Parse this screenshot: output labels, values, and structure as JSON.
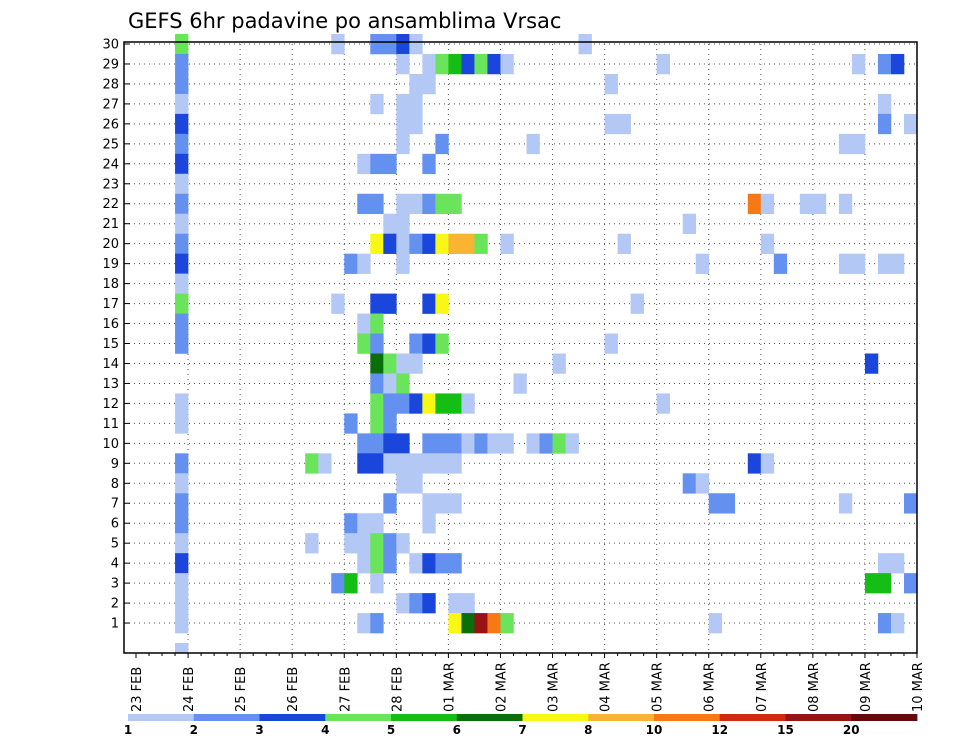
{
  "chart_data": {
    "type": "heatmap",
    "title": "GEFS 6hr padavine po ansamblima Vrsac",
    "x_tick_labels": [
      "23 FEB",
      "24 FEB",
      "25 FEB",
      "26 FEB",
      "27 FEB",
      "28 FEB",
      "01 MAR",
      "02 MAR",
      "03 MAR",
      "04 MAR",
      "05 MAR",
      "06 MAR",
      "07 MAR",
      "08 MAR",
      "09 MAR",
      "10 MAR"
    ],
    "x_range_days": [
      0,
      15
    ],
    "y_tick_labels": [
      "1",
      "2",
      "3",
      "4",
      "5",
      "6",
      "7",
      "8",
      "9",
      "10",
      "11",
      "12",
      "13",
      "14",
      "15",
      "16",
      "17",
      "18",
      "19",
      "20",
      "21",
      "22",
      "23",
      "24",
      "25",
      "26",
      "27",
      "28",
      "29",
      "30"
    ],
    "y_range": [
      0,
      30
    ],
    "grid": true,
    "colorbar": {
      "tick_labels": [
        "1",
        "2",
        "3",
        "4",
        "5",
        "6",
        "7",
        "8",
        "10",
        "12",
        "15",
        "20"
      ],
      "colors": [
        "#b4c8f5",
        "#6490f0",
        "#1a46dc",
        "#6ae45a",
        "#14be14",
        "#0a6e0a",
        "#f8f814",
        "#f8b432",
        "#f87814",
        "#d22814",
        "#961414",
        "#640a0a"
      ]
    },
    "cells_note": "each cell: [x_day_offset_from_23FEB, member_row, color_class_index]",
    "cells": [
      [
        0.75,
        30,
        3
      ],
      [
        0.75,
        29,
        1
      ],
      [
        0.75,
        28,
        1
      ],
      [
        0.75,
        27,
        0
      ],
      [
        0.75,
        26,
        2
      ],
      [
        0.75,
        25,
        1
      ],
      [
        0.75,
        24,
        2
      ],
      [
        0.75,
        23,
        0
      ],
      [
        0.75,
        22,
        1
      ],
      [
        0.75,
        21,
        0
      ],
      [
        0.75,
        20,
        1
      ],
      [
        0.75,
        19,
        2
      ],
      [
        0.75,
        18,
        0
      ],
      [
        0.75,
        17,
        3
      ],
      [
        0.75,
        16,
        1
      ],
      [
        0.75,
        15,
        1
      ],
      [
        0.75,
        12,
        0
      ],
      [
        0.75,
        11,
        0
      ],
      [
        0.75,
        9,
        1
      ],
      [
        0.75,
        8,
        0
      ],
      [
        0.75,
        7,
        1
      ],
      [
        0.75,
        6,
        1
      ],
      [
        0.75,
        5,
        0
      ],
      [
        0.75,
        4,
        2
      ],
      [
        0.75,
        3,
        0
      ],
      [
        0.75,
        2,
        0
      ],
      [
        0.75,
        1,
        0
      ],
      [
        0.75,
        0,
        0
      ],
      [
        3.75,
        30,
        0
      ],
      [
        4.5,
        30,
        1
      ],
      [
        4.75,
        30,
        1
      ],
      [
        5.0,
        30,
        2
      ],
      [
        5.25,
        30,
        0
      ],
      [
        8.5,
        30,
        0
      ],
      [
        5.0,
        29,
        0
      ],
      [
        5.5,
        29,
        0
      ],
      [
        5.75,
        29,
        3
      ],
      [
        6.0,
        29,
        4
      ],
      [
        6.25,
        29,
        2
      ],
      [
        6.5,
        29,
        3
      ],
      [
        6.75,
        29,
        2
      ],
      [
        7.0,
        29,
        0
      ],
      [
        10.0,
        29,
        0
      ],
      [
        13.75,
        29,
        0
      ],
      [
        14.25,
        29,
        1
      ],
      [
        14.5,
        29,
        2
      ],
      [
        5.25,
        28,
        0
      ],
      [
        5.5,
        28,
        0
      ],
      [
        9.0,
        28,
        0
      ],
      [
        4.5,
        27,
        0
      ],
      [
        5.0,
        27,
        0
      ],
      [
        5.25,
        27,
        0
      ],
      [
        14.25,
        27,
        0
      ],
      [
        5.0,
        26,
        0
      ],
      [
        5.25,
        26,
        0
      ],
      [
        9.0,
        26,
        0
      ],
      [
        9.25,
        26,
        0
      ],
      [
        14.25,
        26,
        1
      ],
      [
        14.75,
        26,
        0
      ],
      [
        5.0,
        25,
        0
      ],
      [
        5.75,
        25,
        1
      ],
      [
        7.5,
        25,
        0
      ],
      [
        13.5,
        25,
        0
      ],
      [
        13.75,
        25,
        0
      ],
      [
        4.25,
        24,
        0
      ],
      [
        4.5,
        24,
        1
      ],
      [
        4.75,
        24,
        1
      ],
      [
        5.5,
        24,
        1
      ],
      [
        4.25,
        22,
        1
      ],
      [
        4.5,
        22,
        1
      ],
      [
        5.0,
        22,
        0
      ],
      [
        5.25,
        22,
        0
      ],
      [
        5.5,
        22,
        1
      ],
      [
        5.75,
        22,
        3
      ],
      [
        6.0,
        22,
        3
      ],
      [
        11.75,
        22,
        8
      ],
      [
        12.0,
        22,
        0
      ],
      [
        12.75,
        22,
        0
      ],
      [
        13.0,
        22,
        0
      ],
      [
        13.5,
        22,
        0
      ],
      [
        4.75,
        21,
        0
      ],
      [
        5.0,
        21,
        0
      ],
      [
        10.5,
        21,
        0
      ],
      [
        4.5,
        20,
        6
      ],
      [
        4.75,
        20,
        2
      ],
      [
        5.0,
        20,
        0
      ],
      [
        5.25,
        20,
        1
      ],
      [
        5.5,
        20,
        2
      ],
      [
        5.75,
        20,
        6
      ],
      [
        6.0,
        20,
        7
      ],
      [
        6.25,
        20,
        7
      ],
      [
        6.5,
        20,
        3
      ],
      [
        7.0,
        20,
        0
      ],
      [
        9.25,
        20,
        0
      ],
      [
        12.0,
        20,
        0
      ],
      [
        4.0,
        19,
        1
      ],
      [
        4.25,
        19,
        0
      ],
      [
        5.0,
        19,
        0
      ],
      [
        10.75,
        19,
        0
      ],
      [
        12.25,
        19,
        1
      ],
      [
        13.5,
        19,
        0
      ],
      [
        13.75,
        19,
        0
      ],
      [
        14.25,
        19,
        0
      ],
      [
        14.5,
        19,
        0
      ],
      [
        3.75,
        17,
        0
      ],
      [
        4.5,
        17,
        2
      ],
      [
        4.75,
        17,
        2
      ],
      [
        5.5,
        17,
        2
      ],
      [
        5.75,
        17,
        6
      ],
      [
        9.5,
        17,
        0
      ],
      [
        4.25,
        16,
        0
      ],
      [
        4.5,
        16,
        3
      ],
      [
        9.0,
        15,
        0
      ],
      [
        4.25,
        15,
        3
      ],
      [
        4.5,
        15,
        1
      ],
      [
        5.25,
        15,
        1
      ],
      [
        5.5,
        15,
        2
      ],
      [
        5.75,
        15,
        3
      ],
      [
        4.5,
        14,
        5
      ],
      [
        4.75,
        14,
        3
      ],
      [
        5.0,
        14,
        0
      ],
      [
        5.25,
        14,
        0
      ],
      [
        8.0,
        14,
        0
      ],
      [
        14.0,
        14,
        2
      ],
      [
        4.5,
        13,
        1
      ],
      [
        4.75,
        13,
        0
      ],
      [
        5.0,
        13,
        3
      ],
      [
        7.25,
        13,
        0
      ],
      [
        4.5,
        12,
        3
      ],
      [
        4.75,
        12,
        1
      ],
      [
        5.0,
        12,
        1
      ],
      [
        5.25,
        12,
        2
      ],
      [
        5.5,
        12,
        6
      ],
      [
        5.75,
        12,
        4
      ],
      [
        6.0,
        12,
        4
      ],
      [
        6.25,
        12,
        0
      ],
      [
        10.0,
        12,
        0
      ],
      [
        4.0,
        11,
        1
      ],
      [
        4.5,
        11,
        3
      ],
      [
        4.75,
        11,
        1
      ],
      [
        4.25,
        10,
        1
      ],
      [
        4.5,
        10,
        1
      ],
      [
        4.75,
        10,
        2
      ],
      [
        5.0,
        10,
        2
      ],
      [
        5.5,
        10,
        1
      ],
      [
        5.75,
        10,
        1
      ],
      [
        6.0,
        10,
        1
      ],
      [
        6.25,
        10,
        0
      ],
      [
        6.5,
        10,
        1
      ],
      [
        6.75,
        10,
        0
      ],
      [
        7.0,
        10,
        0
      ],
      [
        7.5,
        10,
        0
      ],
      [
        7.75,
        10,
        1
      ],
      [
        8.0,
        10,
        3
      ],
      [
        8.25,
        10,
        0
      ],
      [
        3.25,
        9,
        3
      ],
      [
        3.5,
        9,
        0
      ],
      [
        4.25,
        9,
        2
      ],
      [
        4.5,
        9,
        2
      ],
      [
        4.75,
        9,
        0
      ],
      [
        5.0,
        9,
        0
      ],
      [
        5.25,
        9,
        0
      ],
      [
        5.5,
        9,
        0
      ],
      [
        5.75,
        9,
        0
      ],
      [
        6.0,
        9,
        0
      ],
      [
        11.75,
        9,
        2
      ],
      [
        12.0,
        9,
        0
      ],
      [
        5.0,
        8,
        0
      ],
      [
        5.25,
        8,
        0
      ],
      [
        10.5,
        8,
        1
      ],
      [
        10.75,
        8,
        0
      ],
      [
        4.75,
        7,
        1
      ],
      [
        5.5,
        7,
        0
      ],
      [
        5.75,
        7,
        0
      ],
      [
        6.0,
        7,
        0
      ],
      [
        11.0,
        7,
        1
      ],
      [
        11.25,
        7,
        1
      ],
      [
        13.5,
        7,
        0
      ],
      [
        14.75,
        7,
        1
      ],
      [
        4.0,
        6,
        1
      ],
      [
        4.25,
        6,
        0
      ],
      [
        4.5,
        6,
        0
      ],
      [
        5.5,
        6,
        0
      ],
      [
        3.25,
        5,
        0
      ],
      [
        4.0,
        5,
        0
      ],
      [
        4.25,
        5,
        0
      ],
      [
        4.5,
        5,
        3
      ],
      [
        4.75,
        5,
        1
      ],
      [
        5.0,
        5,
        0
      ],
      [
        4.25,
        4,
        0
      ],
      [
        4.5,
        4,
        3
      ],
      [
        4.75,
        4,
        1
      ],
      [
        5.25,
        4,
        0
      ],
      [
        5.5,
        4,
        2
      ],
      [
        5.75,
        4,
        1
      ],
      [
        6.0,
        4,
        1
      ],
      [
        14.25,
        4,
        0
      ],
      [
        14.5,
        4,
        0
      ],
      [
        3.75,
        3,
        1
      ],
      [
        4.0,
        3,
        4
      ],
      [
        4.5,
        3,
        0
      ],
      [
        14.0,
        3,
        4
      ],
      [
        14.25,
        3,
        4
      ],
      [
        14.75,
        3,
        1
      ],
      [
        5.0,
        2,
        0
      ],
      [
        5.25,
        2,
        1
      ],
      [
        5.5,
        2,
        2
      ],
      [
        6.0,
        2,
        0
      ],
      [
        6.25,
        2,
        0
      ],
      [
        4.25,
        1,
        0
      ],
      [
        4.5,
        1,
        1
      ],
      [
        6.0,
        1,
        6
      ],
      [
        6.25,
        1,
        5
      ],
      [
        6.5,
        1,
        10
      ],
      [
        6.75,
        1,
        8
      ],
      [
        7.0,
        1,
        3
      ],
      [
        11.0,
        1,
        0
      ],
      [
        14.25,
        1,
        1
      ],
      [
        14.5,
        1,
        0
      ]
    ]
  }
}
